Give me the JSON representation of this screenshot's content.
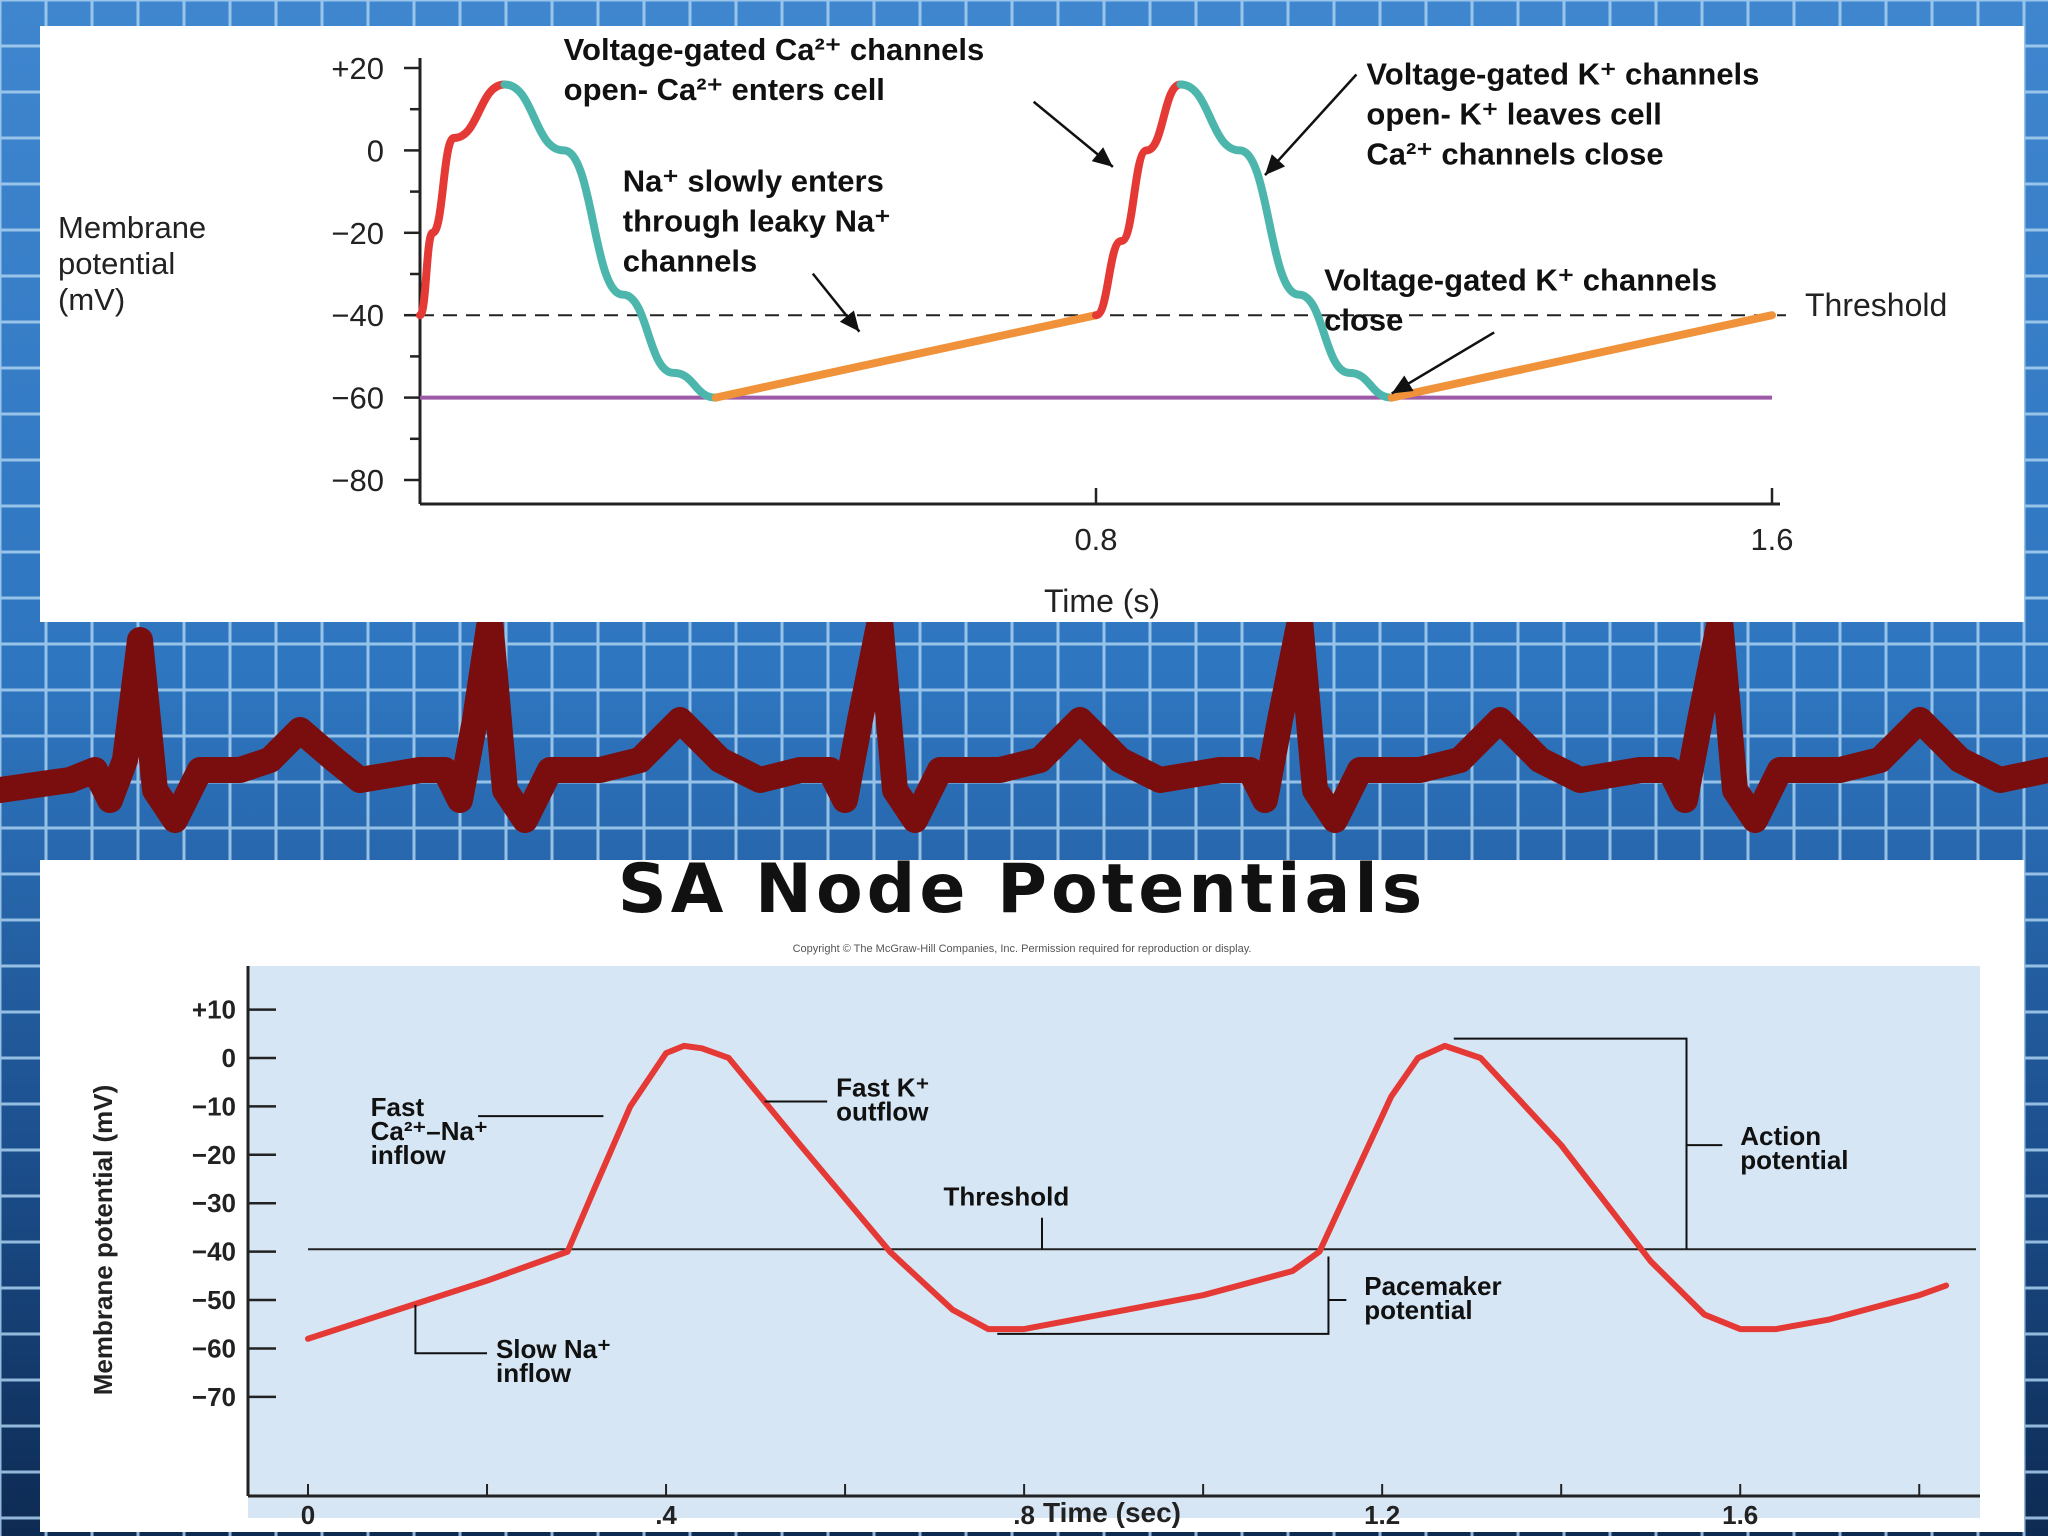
{
  "background": {
    "grid_color": "#9fc6e8",
    "base_color": "#2a6fb6",
    "ecg_color": "#7a0d0d"
  },
  "chart_data": [
    {
      "type": "line",
      "title": "",
      "xlabel": "Time (s)",
      "ylabel": [
        "Membrane",
        "potential",
        "(mV)"
      ],
      "xlim": [
        0,
        1.6
      ],
      "ylim": [
        -80,
        20
      ],
      "x_ticks": [
        {
          "value": 0.8,
          "label": "0.8"
        },
        {
          "value": 1.6,
          "label": "1.6"
        }
      ],
      "y_ticks": [
        {
          "value": 20,
          "label": "+20"
        },
        {
          "value": 0,
          "label": "0"
        },
        {
          "value": -20,
          "label": "−20"
        },
        {
          "value": -40,
          "label": "−40"
        },
        {
          "value": -60,
          "label": "−60"
        },
        {
          "value": -80,
          "label": "−80"
        }
      ],
      "threshold": {
        "value": -40,
        "label": "Threshold"
      },
      "resting": -60,
      "colors": {
        "depolarization": "#e53935",
        "repolarization": "#4db6ac",
        "pacemaker": "#f0923a",
        "baseline": "#9c5aa8"
      },
      "segments": [
        {
          "phase": "depolarization",
          "points": [
            [
              0,
              -40
            ],
            [
              0.015,
              -20
            ],
            [
              0.04,
              3
            ],
            [
              0.1,
              16
            ]
          ]
        },
        {
          "phase": "repolarization",
          "points": [
            [
              0.1,
              16
            ],
            [
              0.17,
              0
            ],
            [
              0.24,
              -35
            ],
            [
              0.3,
              -54
            ],
            [
              0.35,
              -60
            ]
          ]
        },
        {
          "phase": "pacemaker",
          "points": [
            [
              0.35,
              -60
            ],
            [
              0.8,
              -40
            ]
          ]
        },
        {
          "phase": "depolarization",
          "points": [
            [
              0.8,
              -40
            ],
            [
              0.83,
              -22
            ],
            [
              0.86,
              0
            ],
            [
              0.9,
              16
            ]
          ]
        },
        {
          "phase": "repolarization",
          "points": [
            [
              0.9,
              16
            ],
            [
              0.97,
              0
            ],
            [
              1.04,
              -35
            ],
            [
              1.1,
              -54
            ],
            [
              1.15,
              -60
            ]
          ]
        },
        {
          "phase": "pacemaker",
          "points": [
            [
              1.15,
              -60
            ],
            [
              1.6,
              -40
            ]
          ]
        }
      ],
      "annotations": [
        {
          "lines": [
            "Voltage-gated Ca²⁺ channels",
            "open- Ca²⁺ enters cell"
          ],
          "at": [
            0.17,
            22
          ],
          "arrow_to": [
            0.82,
            -4
          ]
        },
        {
          "lines": [
            "Voltage-gated K⁺ channels",
            "open- K⁺ leaves cell",
            "Ca²⁺ channels close"
          ],
          "at": [
            1.12,
            16
          ],
          "arrow_to": [
            1.0,
            -6
          ]
        },
        {
          "lines": [
            "Na⁺ slowly enters",
            "through leaky Na⁺",
            "channels"
          ],
          "at": [
            0.24,
            -10
          ],
          "arrow_to": [
            0.52,
            -44
          ]
        },
        {
          "lines": [
            "Voltage-gated K⁺ channels",
            "close"
          ],
          "at": [
            1.07,
            -34
          ],
          "arrow_to": [
            1.15,
            -59
          ]
        }
      ]
    },
    {
      "type": "line",
      "title": "SA Node Potentials",
      "subtitle": "Copyright © The McGraw-Hill Companies, Inc. Permission required for reproduction or display.",
      "xlabel": "Time (sec)",
      "ylabel": "Membrane potential (mV)",
      "xlim": [
        0,
        1.85
      ],
      "ylim": [
        -88,
        19
      ],
      "x_ticks": [
        {
          "value": 0,
          "label": "0"
        },
        {
          "value": 0.4,
          "label": ".4"
        },
        {
          "value": 0.8,
          "label": ".8"
        },
        {
          "value": 1.2,
          "label": "1.2"
        },
        {
          "value": 1.6,
          "label": "1.6"
        }
      ],
      "y_ticks": [
        {
          "value": 10,
          "label": "+10"
        },
        {
          "value": 0,
          "label": "0"
        },
        {
          "value": -10,
          "label": "−10"
        },
        {
          "value": -20,
          "label": "−20"
        },
        {
          "value": -30,
          "label": "−30"
        },
        {
          "value": -40,
          "label": "−40"
        },
        {
          "value": -50,
          "label": "−50"
        },
        {
          "value": -60,
          "label": "−60"
        },
        {
          "value": -70,
          "label": "−70"
        }
      ],
      "threshold": {
        "value": -39.5,
        "label": "Threshold"
      },
      "line_color": "#e53935",
      "plot_bg": "#d6e6f4",
      "x": [
        0,
        0.1,
        0.2,
        0.29,
        0.32,
        0.36,
        0.4,
        0.42,
        0.44,
        0.47,
        0.55,
        0.65,
        0.72,
        0.76,
        0.8,
        0.9,
        1.0,
        1.1,
        1.13,
        1.17,
        1.21,
        1.24,
        1.27,
        1.31,
        1.4,
        1.5,
        1.56,
        1.6,
        1.64,
        1.7,
        1.8,
        1.83
      ],
      "y": [
        -58,
        -52,
        -46,
        -40,
        -27,
        -10,
        1,
        2.5,
        2,
        0,
        -18,
        -40,
        -52,
        -56,
        -56,
        -52.5,
        -49,
        -44,
        -40,
        -24,
        -8,
        0,
        2.5,
        0,
        -18,
        -42,
        -53,
        -56,
        -56,
        -54,
        -49,
        -47
      ],
      "annotations": [
        {
          "lines": [
            "Fast",
            "Ca²⁺–Na⁺",
            "inflow"
          ],
          "at": [
            0.07,
            -12
          ],
          "leader": [
            [
              0.19,
              -12
            ],
            [
              0.33,
              -12
            ]
          ]
        },
        {
          "lines": [
            "Fast K⁺",
            "outflow"
          ],
          "at": [
            0.59,
            -8
          ],
          "leader": [
            [
              0.58,
              -9
            ],
            [
              0.51,
              -9
            ]
          ]
        },
        {
          "lines": [
            "Threshold"
          ],
          "at": [
            0.71,
            -30.5
          ],
          "leader": [
            [
              0.82,
              -33
            ],
            [
              0.82,
              -39.5
            ]
          ]
        },
        {
          "lines": [
            "Slow Na⁺",
            "inflow"
          ],
          "at": [
            0.21,
            -62
          ],
          "leader": [
            [
              0.2,
              -61
            ],
            [
              0.12,
              -61
            ],
            [
              0.12,
              -51
            ]
          ]
        },
        {
          "lines": [
            "Pacemaker",
            "potential"
          ],
          "at": [
            1.18,
            -49
          ],
          "bracket": [
            [
              0.77,
              -57
            ],
            [
              1.14,
              -57
            ],
            [
              1.14,
              -41
            ]
          ],
          "leader_x": [
            1.14,
            1.16
          ],
          "leader_y": -50
        },
        {
          "lines": [
            "Action",
            "potential"
          ],
          "at": [
            1.6,
            -18
          ],
          "bracket": [
            [
              1.28,
              4
            ],
            [
              1.54,
              4
            ],
            [
              1.54,
              -39.5
            ]
          ],
          "leader_x": [
            1.54,
            1.58
          ],
          "leader_y": -18
        }
      ]
    }
  ]
}
